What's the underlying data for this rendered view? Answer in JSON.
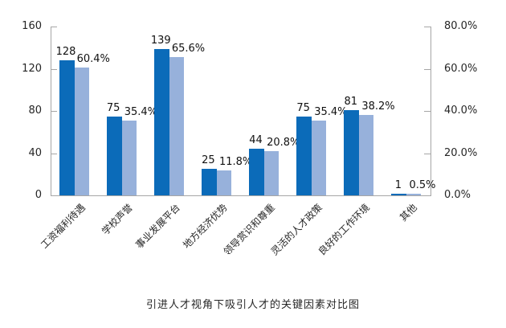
{
  "chart_data": {
    "type": "bar",
    "title": "引进人才视角下吸引人才的关键因素对比图",
    "categories": [
      "工资福利待遇",
      "学校声誉",
      "事业发展平台",
      "地方经济优势",
      "领导赏识和尊重",
      "灵活的人才政策",
      "良好的工作环境",
      "其他"
    ],
    "series": [
      {
        "axis": "left",
        "values": [
          128,
          75,
          139,
          25,
          44,
          75,
          81,
          1
        ],
        "data_labels": [
          "128",
          "75",
          "139",
          "25",
          "44",
          "75",
          "81",
          "1"
        ],
        "color": "#0b6bb9"
      },
      {
        "axis": "right",
        "values": [
          60.4,
          35.4,
          65.6,
          11.8,
          20.8,
          35.4,
          38.2,
          0.5
        ],
        "data_labels": [
          "60.4%",
          "35.4%",
          "65.6%",
          "11.8%",
          "20.8%",
          "35.4%",
          "38.2%",
          "0.5%"
        ],
        "color": "#97b1db"
      }
    ],
    "left_axis": {
      "min": 0,
      "max": 160,
      "ticks": [
        "160",
        "120",
        "80",
        "40",
        "0"
      ]
    },
    "right_axis": {
      "min": 0,
      "max": 80,
      "ticks": [
        "80.0%",
        "60.0%",
        "40.0%",
        "20.0%",
        "0.0%"
      ]
    },
    "legend": "none",
    "grid": false
  },
  "colors": {
    "primary_bar": "#0b6bb9",
    "secondary_bar": "#97b1db",
    "axis": "#a6a6a6",
    "text": "#262626"
  }
}
